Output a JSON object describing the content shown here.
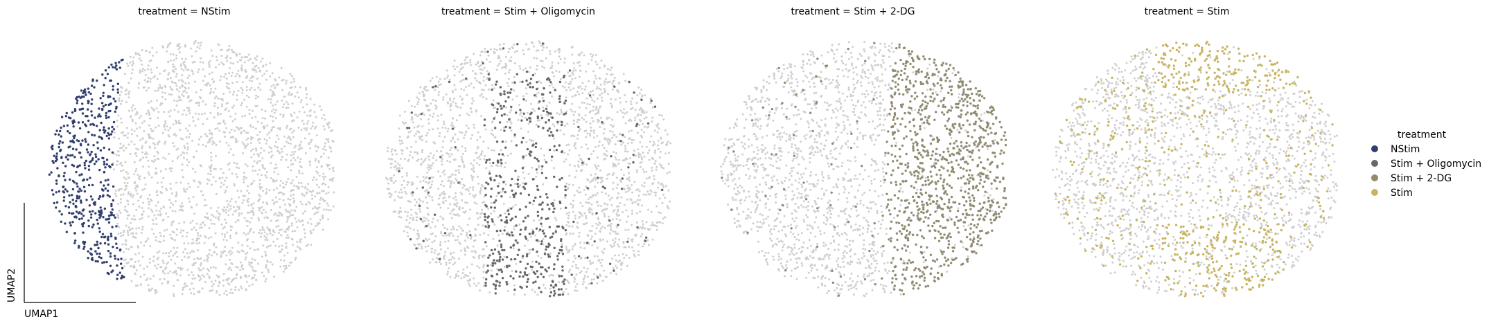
{
  "figure": {
    "panel_titles": [
      "treatment = NStim",
      "treatment = Stim + Oligomycin",
      "treatment = Stim + 2-DG",
      "treatment = Stim"
    ],
    "xlabel": "UMAP1",
    "ylabel": "UMAP2"
  },
  "legend": {
    "title": "treatment",
    "items": [
      {
        "label": "NStim",
        "color": "#323f6e"
      },
      {
        "label": "Stim + Oligomycin",
        "color": "#66676b"
      },
      {
        "label": "Stim + 2-DG",
        "color": "#918b72"
      },
      {
        "label": "Stim",
        "color": "#c8b562"
      }
    ]
  },
  "chart_data": [
    {
      "type": "scatter",
      "title": "treatment = NStim",
      "xlabel": "UMAP1",
      "ylabel": "UMAP2",
      "highlight": "NStim",
      "highlight_color": "#323f6e",
      "background_color": "#cfcfcf",
      "highlight_region": "left crescent (UMAP1 low)"
    },
    {
      "type": "scatter",
      "title": "treatment = Stim + Oligomycin",
      "xlabel": "UMAP1",
      "ylabel": "UMAP2",
      "highlight": "Stim + Oligomycin",
      "highlight_color": "#66676b",
      "background_color": "#cfcfcf",
      "highlight_region": "center band with dense lower cluster"
    },
    {
      "type": "scatter",
      "title": "treatment = Stim + 2-DG",
      "xlabel": "UMAP1",
      "ylabel": "UMAP2",
      "highlight": "Stim + 2-DG",
      "highlight_color": "#918b72",
      "background_color": "#cfcfcf",
      "highlight_region": "right crescent (UMAP1 high)"
    },
    {
      "type": "scatter",
      "title": "treatment = Stim",
      "xlabel": "UMAP1",
      "ylabel": "UMAP2",
      "highlight": "Stim",
      "highlight_color": "#c8b562",
      "background_color": "#cfcfcf",
      "highlight_region": "top cluster, bottom arc and scattered ring"
    }
  ]
}
